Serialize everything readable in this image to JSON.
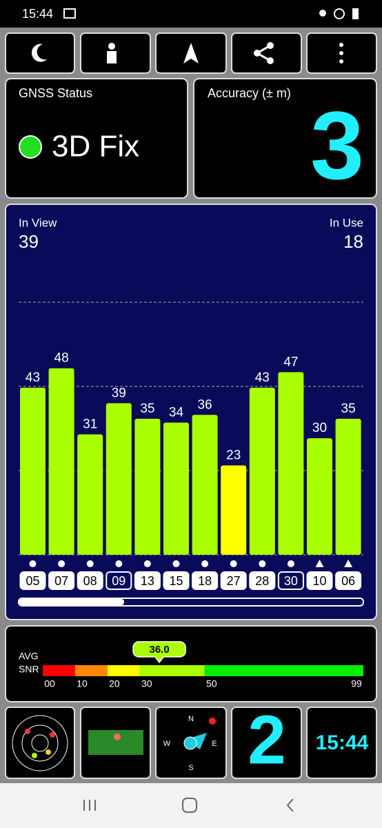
{
  "status_bar": {
    "time": "15:44"
  },
  "gnss": {
    "title": "GNSS Status",
    "value": "3D Fix"
  },
  "accuracy": {
    "title": "Accuracy (± m)",
    "value": 3
  },
  "sky": {
    "in_view_label": "In View",
    "in_view": 39,
    "in_use_label": "In Use",
    "in_use": 18,
    "ylim": [
      0,
      65
    ],
    "prns": [
      "05",
      "07",
      "08",
      "09",
      "13",
      "15",
      "18",
      "27",
      "28",
      "30",
      "10",
      "06"
    ],
    "snr": [
      43,
      48,
      31,
      39,
      35,
      34,
      36,
      23,
      43,
      47,
      30,
      35
    ],
    "colors": [
      "#aaff00",
      "#aaff00",
      "#aaff00",
      "#aaff00",
      "#aaff00",
      "#aaff00",
      "#aaff00",
      "#ffff00",
      "#aaff00",
      "#aaff00",
      "#aaff00",
      "#aaff00"
    ],
    "markers": [
      "dot",
      "dot",
      "dot",
      "dot",
      "dot",
      "dot",
      "dot",
      "dot",
      "dot",
      "dot",
      "triangle",
      "triangle"
    ],
    "box_fills": [
      "#ffffff",
      "#ffffff",
      "#ffffff",
      "#0a0a5a",
      "#ffffff",
      "#ffffff",
      "#ffffff",
      "#ffffff",
      "#ffffff",
      "#0a0a5a",
      "#ffffff",
      "#ffffff"
    ]
  },
  "avg_snr": {
    "label_1": "AVG",
    "label_2": "SNR",
    "value": {
      "value": 36,
      "label": "36.0"
    },
    "xlim": [
      0,
      99
    ],
    "ticks": [
      {
        "value": 0,
        "label": "00"
      },
      10,
      20,
      30,
      50,
      99
    ],
    "segment_colors": [
      "#ff0000",
      "#ff8800",
      "#ffff00",
      "#aaff00",
      "#00ee00"
    ]
  },
  "tiles": {
    "satellites_used": 2,
    "clock": "15:44",
    "compass": [
      "N",
      "E",
      "S",
      "W"
    ]
  }
}
